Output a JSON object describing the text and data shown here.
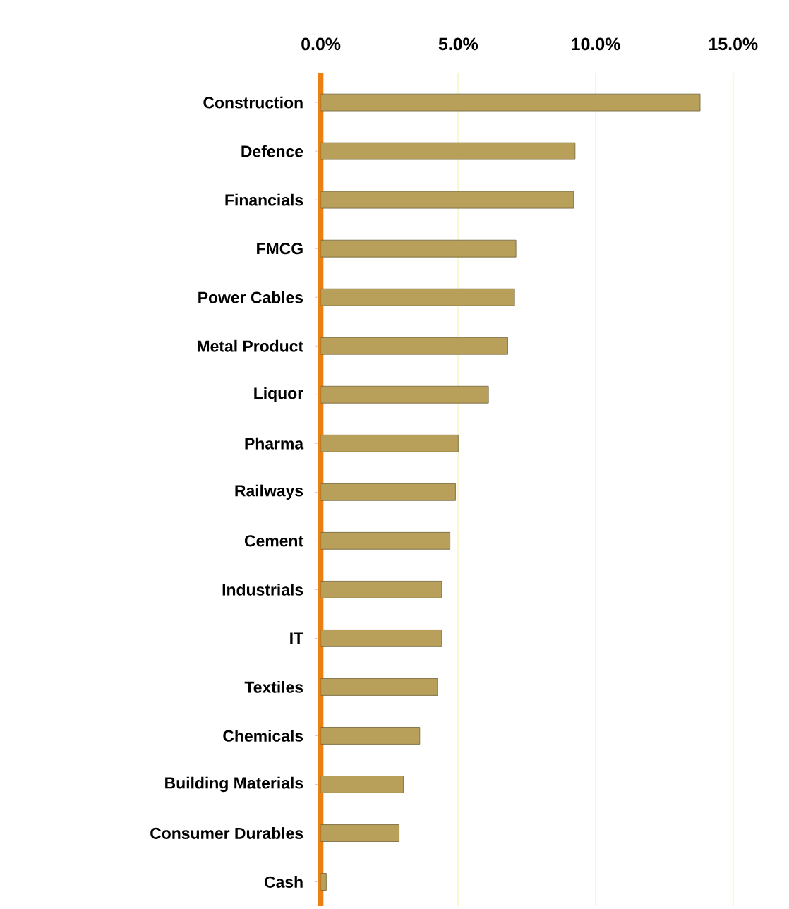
{
  "chart_data": {
    "type": "bar",
    "orientation": "horizontal",
    "categories": [
      "Construction",
      "Defence",
      "Financials",
      "FMCG",
      "Power Cables",
      "Metal Product",
      "Liquor",
      "Pharma",
      "Railways",
      "Cement",
      "Industrials",
      "IT",
      "Textiles",
      "Chemicals",
      "Building Materials",
      "Consumer Durables",
      "Cash"
    ],
    "values": [
      13.8,
      9.25,
      9.2,
      7.1,
      7.05,
      6.8,
      6.1,
      5.0,
      4.9,
      4.7,
      4.4,
      4.4,
      4.25,
      3.6,
      3.0,
      2.85,
      0.2
    ],
    "color": "#b8a05a",
    "xlim": [
      0,
      15
    ],
    "xticks": [
      {
        "value": 0,
        "label": "0.0%"
      },
      {
        "value": 5,
        "label": "5.0%"
      },
      {
        "value": 10,
        "label": "10.0%"
      },
      {
        "value": 15,
        "label": "15.0%"
      }
    ],
    "grid": "x"
  }
}
